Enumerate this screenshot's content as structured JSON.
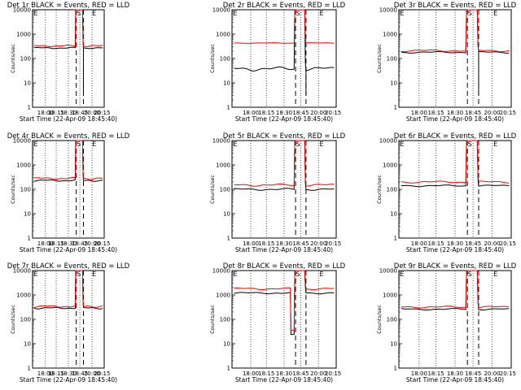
{
  "figure": {
    "x_tick_labels": [
      "18:00",
      "18:15",
      "18:30",
      "18:45",
      "20:00",
      "20:15"
    ],
    "y_tick_labels": [
      "1",
      "10",
      "100",
      "1000",
      "10000"
    ],
    "xlabel": "Start Time (22-Apr-09 18:45:40)",
    "ylabel": "Counts/sec",
    "marks": [
      "E",
      "S",
      "E"
    ]
  },
  "chart_data": [
    {
      "type": "line",
      "title": "Det 1r BLACK = Events, RED = LLD",
      "xlabel": "Start Time (22-Apr-09 18:45:40)",
      "ylabel": "Counts/sec",
      "y_scale": "log",
      "ylim": [
        1,
        10000
      ],
      "series": [
        {
          "color": "#000000",
          "base": 270,
          "variation": 0.04
        },
        {
          "color": "#ff0000",
          "base": 330,
          "variation": 0.05
        }
      ],
      "events": {
        "dip": false,
        "gap_black": true
      }
    },
    {
      "type": "line",
      "title": "Det 2r BLACK = Events, RED = LLD",
      "xlabel": "Start Time (22-Apr-09 18:45:40)",
      "ylabel": "Counts/sec",
      "y_scale": "log",
      "ylim": [
        1,
        10000
      ],
      "series": [
        {
          "color": "#000000",
          "base": 38,
          "variation": 0.12
        },
        {
          "color": "#ff0000",
          "base": 430,
          "variation": 0.02
        }
      ],
      "events": {
        "dip": false,
        "gap_black": true
      }
    },
    {
      "type": "line",
      "title": "Det 3r BLACK = Events, RED = LLD",
      "xlabel": "Start Time (22-Apr-09 18:45:40)",
      "ylabel": "Counts/sec",
      "y_scale": "log",
      "ylim": [
        1,
        10000
      ],
      "series": [
        {
          "color": "#000000",
          "base": 180,
          "variation": 0.05
        },
        {
          "color": "#ff0000",
          "base": 210,
          "variation": 0.06
        }
      ],
      "events": {
        "dip": false,
        "gap_black": true
      }
    },
    {
      "type": "line",
      "title": "Det 4r BLACK = Events, RED = LLD",
      "xlabel": "Start Time (22-Apr-09 18:45:40)",
      "ylabel": "Counts/sec",
      "y_scale": "log",
      "ylim": [
        1,
        10000
      ],
      "series": [
        {
          "color": "#000000",
          "base": 230,
          "variation": 0.05
        },
        {
          "color": "#ff0000",
          "base": 280,
          "variation": 0.06
        }
      ],
      "events": {
        "dip": false,
        "gap_black": false
      }
    },
    {
      "type": "line",
      "title": "Det 5r BLACK = Events, RED = LLD",
      "xlabel": "Start Time (22-Apr-09 18:45:40)",
      "ylabel": "Counts/sec",
      "y_scale": "log",
      "ylim": [
        1,
        10000
      ],
      "series": [
        {
          "color": "#000000",
          "base": 100,
          "variation": 0.06
        },
        {
          "color": "#ff0000",
          "base": 150,
          "variation": 0.07
        }
      ],
      "events": {
        "dip": false,
        "gap_black": false
      }
    },
    {
      "type": "line",
      "title": "Det 6r BLACK = Events, RED = LLD",
      "xlabel": "Start Time (22-Apr-09 18:45:40)",
      "ylabel": "Counts/sec",
      "y_scale": "log",
      "ylim": [
        1,
        10000
      ],
      "series": [
        {
          "color": "#000000",
          "base": 140,
          "variation": 0.05
        },
        {
          "color": "#ff0000",
          "base": 200,
          "variation": 0.06
        }
      ],
      "events": {
        "dip": false,
        "gap_black": false
      }
    },
    {
      "type": "line",
      "title": "Det 7r BLACK = Events, RED = LLD",
      "xlabel": "Start Time (22-Apr-09 18:45:40)",
      "ylabel": "Counts/sec",
      "y_scale": "log",
      "ylim": [
        1,
        10000
      ],
      "series": [
        {
          "color": "#000000",
          "base": 290,
          "variation": 0.05
        },
        {
          "color": "#ff0000",
          "base": 340,
          "variation": 0.06
        }
      ],
      "events": {
        "dip": false,
        "gap_black": false
      }
    },
    {
      "type": "line",
      "title": "Det 8r BLACK = Events, RED = LLD",
      "xlabel": "Start Time (22-Apr-09 18:45:40)",
      "ylabel": "Counts/sec",
      "y_scale": "log",
      "ylim": [
        1,
        10000
      ],
      "series": [
        {
          "color": "#000000",
          "base": 1200,
          "variation": 0.05
        },
        {
          "color": "#ff0000",
          "base": 1800,
          "variation": 0.06
        }
      ],
      "events": {
        "dip": true,
        "gap_black": false
      }
    },
    {
      "type": "line",
      "title": "Det 9r BLACK = Events, RED = LLD",
      "xlabel": "Start Time (22-Apr-09 18:45:40)",
      "ylabel": "Counts/sec",
      "y_scale": "log",
      "ylim": [
        1,
        10000
      ],
      "series": [
        {
          "color": "#000000",
          "base": 260,
          "variation": 0.05
        },
        {
          "color": "#ff0000",
          "base": 320,
          "variation": 0.06
        }
      ],
      "events": {
        "dip": false,
        "gap_black": false
      }
    }
  ]
}
